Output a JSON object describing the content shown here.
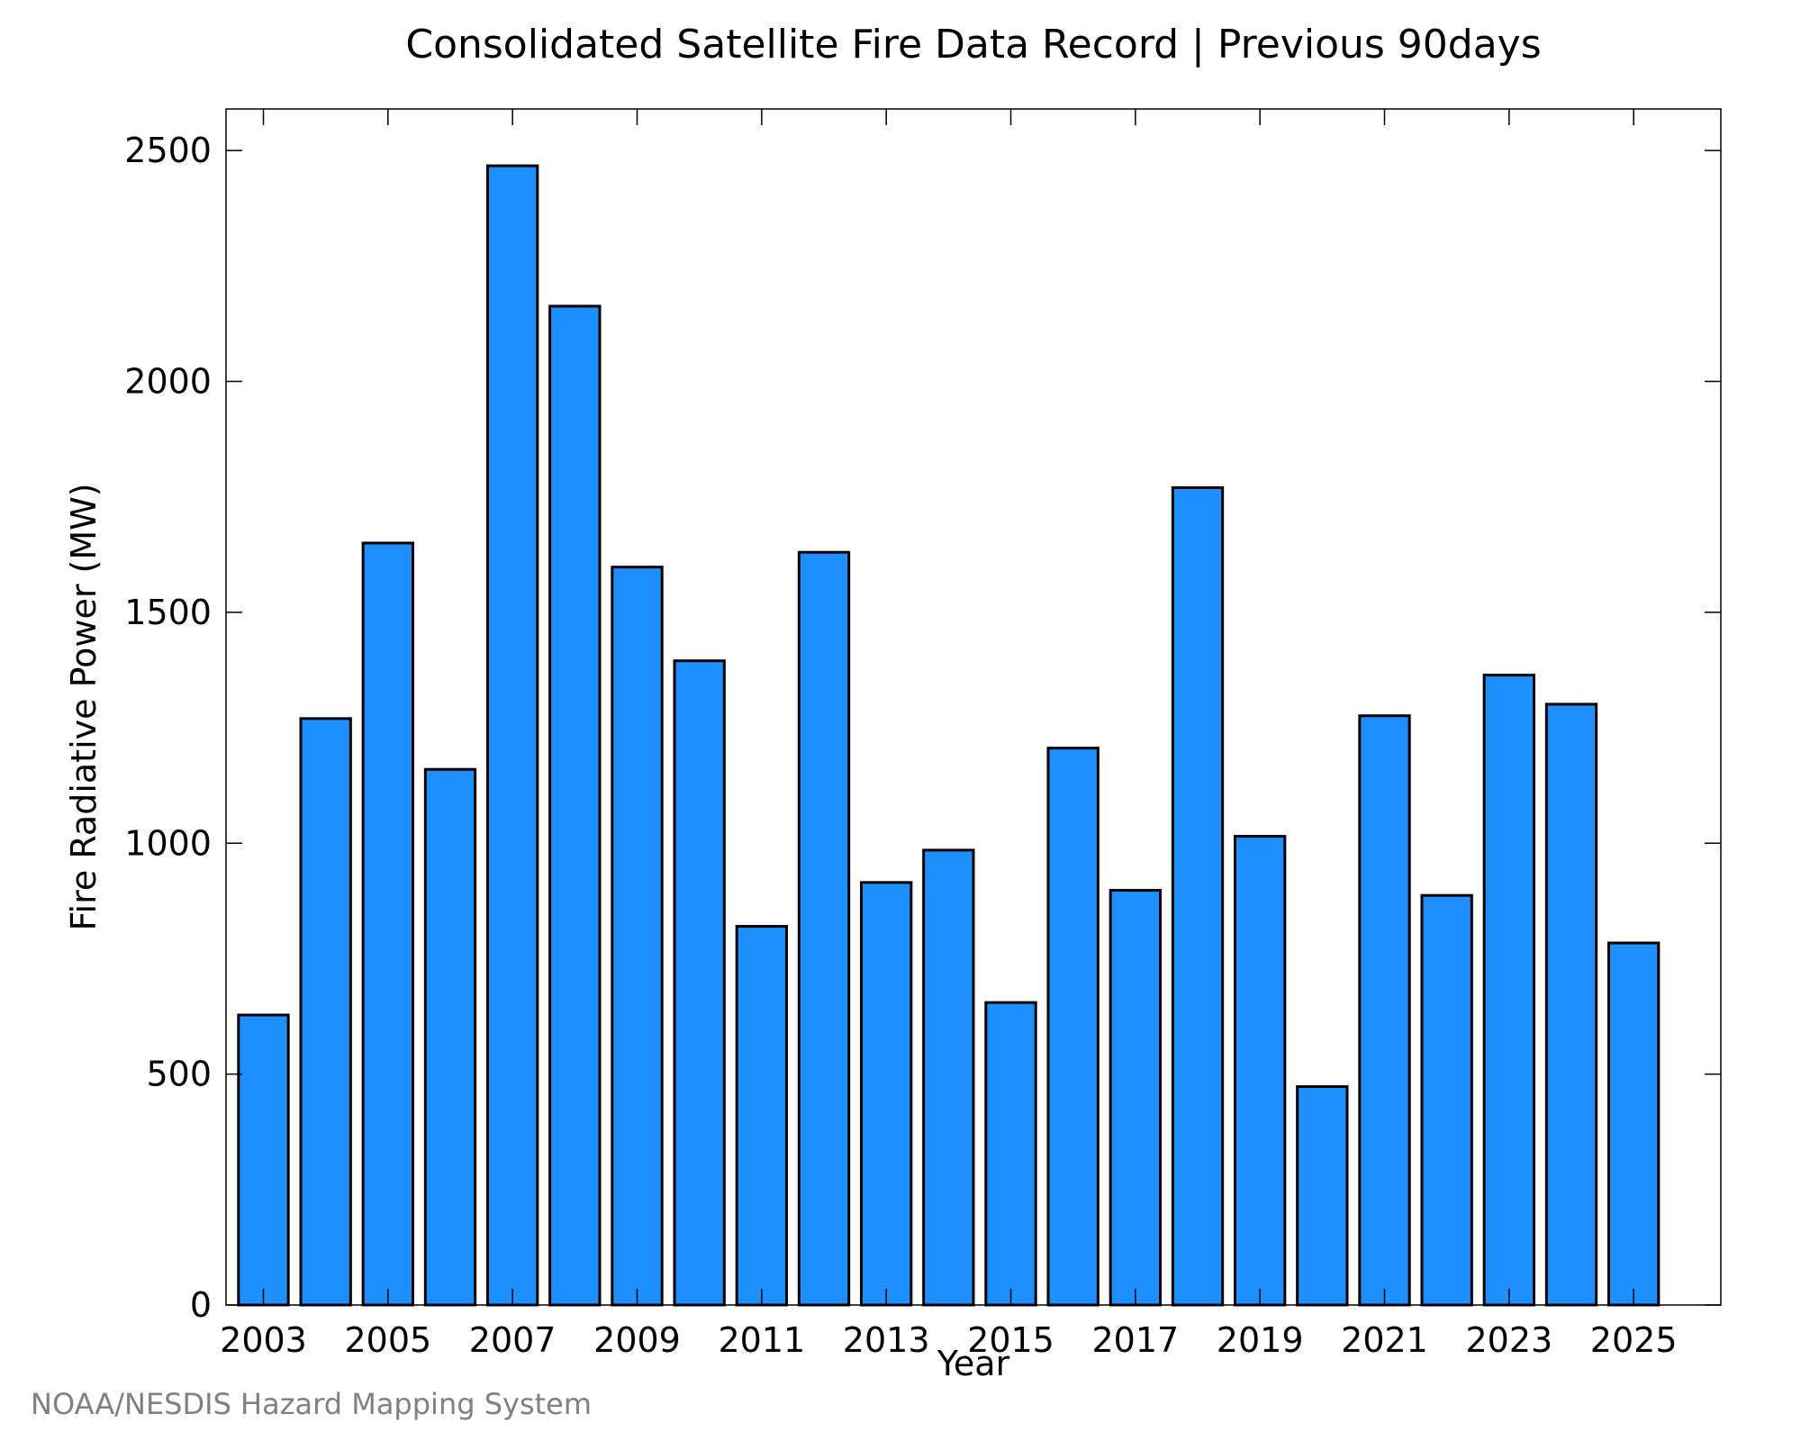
{
  "chart_data": {
    "type": "bar",
    "title": "Consolidated Satellite Fire Data Record | Previous 90days",
    "xlabel": "Year",
    "ylabel": "Fire Radiative Power (MW)",
    "source": "NOAA/NESDIS Hazard Mapping System",
    "bar_color": "#1e8fff",
    "categories": [
      2003,
      2004,
      2005,
      2006,
      2007,
      2008,
      2009,
      2010,
      2011,
      2012,
      2013,
      2014,
      2015,
      2016,
      2017,
      2018,
      2019,
      2020,
      2021,
      2022,
      2023,
      2024,
      2025
    ],
    "values": [
      628,
      1270,
      1650,
      1160,
      2467,
      2163,
      1598,
      1395,
      820,
      1630,
      915,
      985,
      655,
      1206,
      898,
      1770,
      1015,
      473,
      1276,
      887,
      1364,
      1301,
      784
    ],
    "xlim": [
      2002.4,
      2026.4
    ],
    "ylim": [
      0,
      2590
    ],
    "x_ticks": [
      2003,
      2005,
      2007,
      2009,
      2011,
      2013,
      2015,
      2017,
      2019,
      2021,
      2023,
      2025
    ],
    "y_ticks": [
      0,
      500,
      1000,
      1500,
      2000,
      2500
    ],
    "grid": false
  }
}
